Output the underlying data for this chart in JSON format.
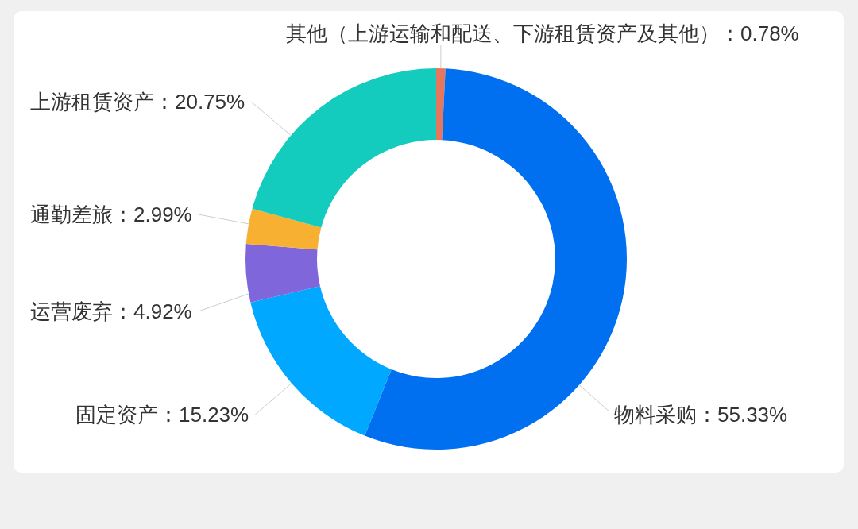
{
  "chart_data": {
    "type": "donut",
    "categories": [
      "其他（上游运输和配送、下游租赁资产及其他）",
      "物料采购",
      "固定资产",
      "运营废弃",
      "通勤差旅",
      "上游租赁资产"
    ],
    "values": [
      0.78,
      55.33,
      15.23,
      4.92,
      2.99,
      20.75
    ],
    "value_labels": [
      "0.78%",
      "55.33%",
      "15.23%",
      "4.92%",
      "2.99%",
      "20.75%"
    ],
    "colors": [
      "#e5775e",
      "#006ff0",
      "#00a8ff",
      "#8066db",
      "#f7b031",
      "#13ccbd"
    ],
    "legend": false
  }
}
